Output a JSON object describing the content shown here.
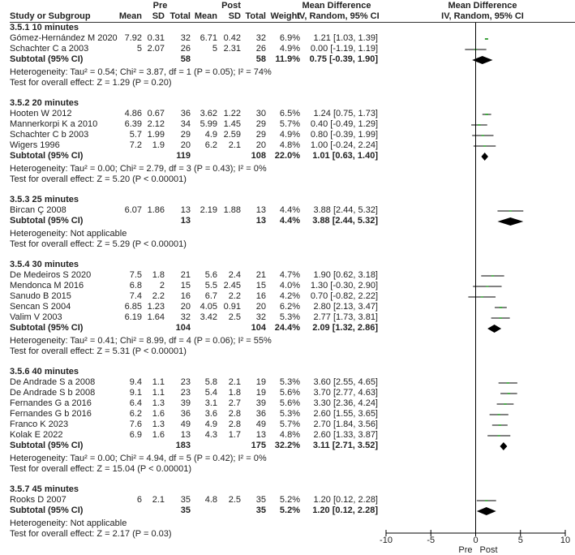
{
  "header": {
    "study": "Study or Subgroup",
    "pre": "Pre",
    "post": "Post",
    "mean": "Mean",
    "sd": "SD",
    "total": "Total",
    "weight": "Weight",
    "md_title": "Mean Difference",
    "md_method": "IV, Random, 95% CI",
    "plot_title": "Mean Difference",
    "plot_method": "IV, Random, 95% CI"
  },
  "chart_data": {
    "type": "forest",
    "xlim": [
      -10,
      10
    ],
    "xticks": [
      "-10",
      "-5",
      "0",
      "5",
      "10"
    ],
    "xlabel_left": "Pre",
    "xlabel_right": "Post",
    "colors": {
      "study_marker": "#2e9e2e",
      "ci_line": "#000000",
      "diamond": "#000000"
    },
    "groups": [
      {
        "heading": "3.5.1 10 minutes",
        "studies": [
          {
            "name": "Gómez-Hernández M 2020",
            "pre_mean": "7.92",
            "pre_sd": "0.31",
            "pre_total": "32",
            "post_mean": "6.71",
            "post_sd": "0.42",
            "post_total": "32",
            "weight": "6.9%",
            "md": 1.21,
            "lo": 1.03,
            "hi": 1.39
          },
          {
            "name": "Schachter C a 2003",
            "pre_mean": "5",
            "pre_sd": "2.07",
            "pre_total": "26",
            "post_mean": "5",
            "post_sd": "2.31",
            "post_total": "26",
            "weight": "4.9%",
            "md": 0.0,
            "lo": -1.19,
            "hi": 1.19
          }
        ],
        "subtotal": {
          "name": "Subtotal (95% CI)",
          "pre_total": "58",
          "post_total": "58",
          "weight": "11.9%",
          "md": 0.75,
          "lo": -0.39,
          "hi": 1.9
        },
        "heterogeneity": "Heterogeneity: Tau² = 0.54; Chi² = 3.87, df = 1 (P = 0.05); I² = 74%",
        "overall": "Test for overall effect: Z = 1.29 (P = 0.20)"
      },
      {
        "heading": "3.5.2 20 minutes",
        "studies": [
          {
            "name": "Hooten W 2012",
            "pre_mean": "4.86",
            "pre_sd": "0.67",
            "pre_total": "36",
            "post_mean": "3.62",
            "post_sd": "1.22",
            "post_total": "30",
            "weight": "6.5%",
            "md": 1.24,
            "lo": 0.75,
            "hi": 1.73
          },
          {
            "name": "Mannerkorpi K a 2010",
            "pre_mean": "6.39",
            "pre_sd": "2.12",
            "pre_total": "34",
            "post_mean": "5.99",
            "post_sd": "1.45",
            "post_total": "29",
            "weight": "5.7%",
            "md": 0.4,
            "lo": -0.49,
            "hi": 1.29
          },
          {
            "name": "Schachter C b 2003",
            "pre_mean": "5.7",
            "pre_sd": "1.99",
            "pre_total": "29",
            "post_mean": "4.9",
            "post_sd": "2.59",
            "post_total": "29",
            "weight": "4.9%",
            "md": 0.8,
            "lo": -0.39,
            "hi": 1.99
          },
          {
            "name": "Wigers 1996",
            "pre_mean": "7.2",
            "pre_sd": "1.9",
            "pre_total": "20",
            "post_mean": "6.2",
            "post_sd": "2.1",
            "post_total": "20",
            "weight": "4.8%",
            "md": 1.0,
            "lo": -0.24,
            "hi": 2.24
          }
        ],
        "subtotal": {
          "name": "Subtotal (95% CI)",
          "pre_total": "119",
          "post_total": "108",
          "weight": "22.0%",
          "md": 1.01,
          "lo": 0.63,
          "hi": 1.4
        },
        "heterogeneity": "Heterogeneity: Tau² = 0.00; Chi² = 2.79, df = 3 (P = 0.43); I² = 0%",
        "overall": "Test for overall effect: Z = 5.20 (P < 0.00001)"
      },
      {
        "heading": "3.5.3 25 minutes",
        "studies": [
          {
            "name": "Bircan Ç 2008",
            "pre_mean": "6.07",
            "pre_sd": "1.86",
            "pre_total": "13",
            "post_mean": "2.19",
            "post_sd": "1.88",
            "post_total": "13",
            "weight": "4.4%",
            "md": 3.88,
            "lo": 2.44,
            "hi": 5.32
          }
        ],
        "subtotal": {
          "name": "Subtotal (95% CI)",
          "pre_total": "13",
          "post_total": "13",
          "weight": "4.4%",
          "md": 3.88,
          "lo": 2.44,
          "hi": 5.32
        },
        "heterogeneity": "Heterogeneity: Not applicable",
        "overall": "Test for overall effect: Z = 5.29 (P < 0.00001)"
      },
      {
        "heading": "3.5.4 30 minutes",
        "studies": [
          {
            "name": "De Medeiros S 2020",
            "pre_mean": "7.5",
            "pre_sd": "1.8",
            "pre_total": "21",
            "post_mean": "5.6",
            "post_sd": "2.4",
            "post_total": "21",
            "weight": "4.7%",
            "md": 1.9,
            "lo": 0.62,
            "hi": 3.18
          },
          {
            "name": "Mendonca M 2016",
            "pre_mean": "6.8",
            "pre_sd": "2",
            "pre_total": "15",
            "post_mean": "5.5",
            "post_sd": "2.45",
            "post_total": "15",
            "weight": "4.0%",
            "md": 1.3,
            "lo": -0.3,
            "hi": 2.9
          },
          {
            "name": "Sanudo B 2015",
            "pre_mean": "7.4",
            "pre_sd": "2.2",
            "pre_total": "16",
            "post_mean": "6.7",
            "post_sd": "2.2",
            "post_total": "16",
            "weight": "4.2%",
            "md": 0.7,
            "lo": -0.82,
            "hi": 2.22
          },
          {
            "name": "Sencan S 2004",
            "pre_mean": "6.85",
            "pre_sd": "1.23",
            "pre_total": "20",
            "post_mean": "4.05",
            "post_sd": "0.91",
            "post_total": "20",
            "weight": "6.2%",
            "md": 2.8,
            "lo": 2.13,
            "hi": 3.47
          },
          {
            "name": "Valim V 2003",
            "pre_mean": "6.19",
            "pre_sd": "1.64",
            "pre_total": "32",
            "post_mean": "3.42",
            "post_sd": "2.5",
            "post_total": "32",
            "weight": "5.3%",
            "md": 2.77,
            "lo": 1.73,
            "hi": 3.81
          }
        ],
        "subtotal": {
          "name": "Subtotal (95% CI)",
          "pre_total": "104",
          "post_total": "104",
          "weight": "24.4%",
          "md": 2.09,
          "lo": 1.32,
          "hi": 2.86
        },
        "heterogeneity": "Heterogeneity: Tau² = 0.41; Chi² = 8.99, df = 4 (P = 0.06); I² = 55%",
        "overall": "Test for overall effect: Z = 5.31 (P < 0.00001)"
      },
      {
        "heading": "3.5.6 40 minutes",
        "studies": [
          {
            "name": "De Andrade S a 2008",
            "pre_mean": "9.4",
            "pre_sd": "1.1",
            "pre_total": "23",
            "post_mean": "5.8",
            "post_sd": "2.1",
            "post_total": "19",
            "weight": "5.3%",
            "md": 3.6,
            "lo": 2.55,
            "hi": 4.65
          },
          {
            "name": "De Andrade S b 2008",
            "pre_mean": "9.1",
            "pre_sd": "1.1",
            "pre_total": "23",
            "post_mean": "5.4",
            "post_sd": "1.8",
            "post_total": "19",
            "weight": "5.6%",
            "md": 3.7,
            "lo": 2.77,
            "hi": 4.63
          },
          {
            "name": "Fernandes G a 2016",
            "pre_mean": "6.4",
            "pre_sd": "1.3",
            "pre_total": "39",
            "post_mean": "3.1",
            "post_sd": "2.7",
            "post_total": "39",
            "weight": "5.6%",
            "md": 3.3,
            "lo": 2.36,
            "hi": 4.24
          },
          {
            "name": "Fernandes G b 2016",
            "pre_mean": "6.2",
            "pre_sd": "1.6",
            "pre_total": "36",
            "post_mean": "3.6",
            "post_sd": "2.8",
            "post_total": "36",
            "weight": "5.3%",
            "md": 2.6,
            "lo": 1.55,
            "hi": 3.65
          },
          {
            "name": "Franco K 2023",
            "pre_mean": "7.6",
            "pre_sd": "1.3",
            "pre_total": "49",
            "post_mean": "4.9",
            "post_sd": "2.8",
            "post_total": "49",
            "weight": "5.7%",
            "md": 2.7,
            "lo": 1.84,
            "hi": 3.56
          },
          {
            "name": "Kolak E 2022",
            "pre_mean": "6.9",
            "pre_sd": "1.6",
            "pre_total": "13",
            "post_mean": "4.3",
            "post_sd": "1.7",
            "post_total": "13",
            "weight": "4.8%",
            "md": 2.6,
            "lo": 1.33,
            "hi": 3.87
          }
        ],
        "subtotal": {
          "name": "Subtotal (95% CI)",
          "pre_total": "183",
          "post_total": "175",
          "weight": "32.2%",
          "md": 3.11,
          "lo": 2.71,
          "hi": 3.52
        },
        "heterogeneity": "Heterogeneity: Tau² = 0.00; Chi² = 4.94, df = 5 (P = 0.42); I² = 0%",
        "overall": "Test for overall effect: Z = 15.04 (P < 0.00001)"
      },
      {
        "heading": "3.5.7 45 minutes",
        "studies": [
          {
            "name": "Rooks D 2007",
            "pre_mean": "6",
            "pre_sd": "2.1",
            "pre_total": "35",
            "post_mean": "4.8",
            "post_sd": "2.5",
            "post_total": "35",
            "weight": "5.2%",
            "md": 1.2,
            "lo": 0.12,
            "hi": 2.28
          }
        ],
        "subtotal": {
          "name": "Subtotal (95% CI)",
          "pre_total": "35",
          "post_total": "35",
          "weight": "5.2%",
          "md": 1.2,
          "lo": 0.12,
          "hi": 2.28
        },
        "heterogeneity": "Heterogeneity: Not applicable",
        "overall": "Test for overall effect: Z = 2.17 (P = 0.03)"
      }
    ]
  }
}
